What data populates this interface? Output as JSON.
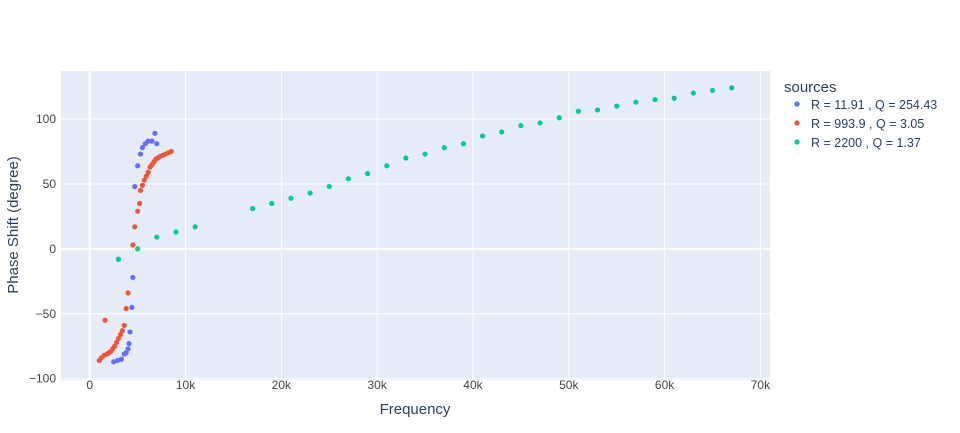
{
  "chart_data": {
    "type": "scatter",
    "title": "",
    "xlabel": "Frequency",
    "ylabel": "Phase Shift (degree)",
    "xlim": [
      -3000,
      71000
    ],
    "ylim": [
      -101,
      137
    ],
    "x_ticks": [
      0,
      10000,
      20000,
      30000,
      40000,
      50000,
      60000,
      70000
    ],
    "x_tick_labels": [
      "0",
      "10k",
      "20k",
      "30k",
      "40k",
      "50k",
      "60k",
      "70k"
    ],
    "y_ticks": [
      -100,
      -50,
      0,
      50,
      100
    ],
    "y_tick_labels": [
      "−100",
      "−50",
      "0",
      "50",
      "100"
    ],
    "grid": true,
    "plot_background": "#e5ecf6",
    "legend": {
      "title": "sources",
      "placement": "right"
    },
    "series": [
      {
        "name": "R = 11.91 , Q = 254.43",
        "color": "#636efa",
        "points": [
          [
            2500,
            -87
          ],
          [
            2900,
            -86
          ],
          [
            3300,
            -85
          ],
          [
            3600,
            -81
          ],
          [
            3800,
            -80
          ],
          [
            4000,
            -77
          ],
          [
            4100,
            -73
          ],
          [
            4200,
            -64
          ],
          [
            4400,
            -45
          ],
          [
            4500,
            -22
          ],
          [
            4700,
            48
          ],
          [
            5000,
            64
          ],
          [
            5300,
            73
          ],
          [
            5500,
            78
          ],
          [
            5800,
            81
          ],
          [
            6100,
            83
          ],
          [
            6500,
            83
          ],
          [
            6800,
            89
          ],
          [
            7000,
            81
          ]
        ]
      },
      {
        "name": "R = 993.9 , Q = 3.05",
        "color": "#ef553b",
        "points": [
          [
            1000,
            -86
          ],
          [
            1200,
            -84
          ],
          [
            1500,
            -82
          ],
          [
            1600,
            -55
          ],
          [
            1800,
            -81
          ],
          [
            2000,
            -80
          ],
          [
            2200,
            -79
          ],
          [
            2400,
            -77
          ],
          [
            2600,
            -75
          ],
          [
            2800,
            -72
          ],
          [
            3000,
            -69
          ],
          [
            3200,
            -66
          ],
          [
            3400,
            -63
          ],
          [
            3600,
            -59
          ],
          [
            3800,
            -46
          ],
          [
            4000,
            -34
          ],
          [
            4500,
            3
          ],
          [
            4700,
            17
          ],
          [
            5000,
            29
          ],
          [
            5200,
            35
          ],
          [
            5300,
            45
          ],
          [
            5500,
            49
          ],
          [
            5700,
            53
          ],
          [
            5900,
            56
          ],
          [
            6100,
            59
          ],
          [
            6300,
            63
          ],
          [
            6500,
            65
          ],
          [
            6700,
            67
          ],
          [
            6900,
            69
          ],
          [
            7100,
            70
          ],
          [
            7300,
            71
          ],
          [
            7600,
            72
          ],
          [
            7900,
            73
          ],
          [
            8200,
            74
          ],
          [
            8500,
            75
          ]
        ]
      },
      {
        "name": "R = 2200 , Q = 1.37",
        "color": "#00cc96",
        "points": [
          [
            3000,
            -8
          ],
          [
            5000,
            0
          ],
          [
            7000,
            9
          ],
          [
            9000,
            13
          ],
          [
            11000,
            17
          ],
          [
            17000,
            31
          ],
          [
            19000,
            35
          ],
          [
            21000,
            39
          ],
          [
            23000,
            43
          ],
          [
            25000,
            48
          ],
          [
            27000,
            54
          ],
          [
            29000,
            58
          ],
          [
            31000,
            64
          ],
          [
            33000,
            70
          ],
          [
            35000,
            73
          ],
          [
            37000,
            78
          ],
          [
            39000,
            81
          ],
          [
            41000,
            87
          ],
          [
            43000,
            90
          ],
          [
            45000,
            95
          ],
          [
            47000,
            97
          ],
          [
            49000,
            101
          ],
          [
            51000,
            106
          ],
          [
            53000,
            107
          ],
          [
            55000,
            110
          ],
          [
            57000,
            113
          ],
          [
            59000,
            115
          ],
          [
            61000,
            116
          ],
          [
            63000,
            120
          ],
          [
            65000,
            122
          ],
          [
            67000,
            124
          ]
        ]
      }
    ]
  }
}
